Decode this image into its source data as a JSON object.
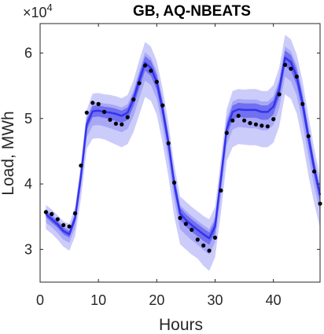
{
  "chart_data": {
    "type": "line",
    "title": "GB, AQ-NBEATS",
    "xlabel": "Hours",
    "ylabel": "Load, MWh",
    "y_multiplier_label": "×10",
    "y_multiplier_exponent": "4",
    "xlim": [
      0,
      48
    ],
    "ylim": [
      25000,
      64500
    ],
    "xticks": [
      0,
      10,
      20,
      30,
      40
    ],
    "xtick_labels": [
      "0",
      "10",
      "20",
      "30",
      "40"
    ],
    "yticks": [
      30000,
      40000,
      50000,
      60000
    ],
    "ytick_labels": [
      "3",
      "4",
      "5",
      "6"
    ],
    "grid": false,
    "legend": "none",
    "x": [
      1,
      2,
      3,
      4,
      5,
      6,
      7,
      8,
      9,
      10,
      11,
      12,
      13,
      14,
      15,
      16,
      17,
      18,
      19,
      20,
      21,
      22,
      23,
      24,
      25,
      26,
      27,
      28,
      29,
      30,
      31,
      32,
      33,
      34,
      35,
      36,
      37,
      38,
      39,
      40,
      41,
      42,
      43,
      44,
      45,
      46,
      47,
      48
    ],
    "series": [
      {
        "kind": "observed-points",
        "color": "#000000",
        "values": [
          35700,
          35400,
          34600,
          33700,
          33500,
          35500,
          42800,
          50900,
          52400,
          52200,
          51000,
          49800,
          49200,
          49100,
          50200,
          52900,
          55400,
          58100,
          57300,
          55600,
          52000,
          46200,
          40200,
          34800,
          33900,
          33000,
          31500,
          30600,
          29800,
          31800,
          39000,
          47800,
          49700,
          50400,
          49700,
          49300,
          49100,
          48900,
          48800,
          49900,
          53700,
          58200,
          57600,
          56400,
          52200,
          47300,
          41900,
          37000
        ]
      },
      {
        "kind": "forecast-median",
        "color": "#3333ee",
        "values": [
          35400,
          34600,
          33800,
          32800,
          32300,
          34800,
          41200,
          49100,
          51100,
          51200,
          51000,
          50900,
          50700,
          50400,
          50900,
          52900,
          55800,
          58500,
          57700,
          55600,
          51400,
          46300,
          40000,
          35500,
          34500,
          33700,
          33000,
          32300,
          31700,
          33500,
          40800,
          48400,
          51000,
          51400,
          51300,
          51300,
          51300,
          51000,
          51000,
          51800,
          54400,
          59300,
          58600,
          56400,
          52300,
          47200,
          42400,
          38300
        ]
      },
      {
        "kind": "quantile-band-outer",
        "color": "#ccccfb",
        "lower": [
          33100,
          32400,
          31500,
          30400,
          29800,
          32000,
          37700,
          45400,
          46900,
          47000,
          46800,
          46400,
          46000,
          45600,
          46100,
          47900,
          50600,
          53300,
          52700,
          50600,
          46200,
          41100,
          35000,
          30800,
          30000,
          29200,
          28600,
          27500,
          26700,
          28800,
          35500,
          43500,
          45600,
          46100,
          46000,
          45900,
          45900,
          45600,
          45600,
          46300,
          48800,
          53700,
          53000,
          50800,
          46500,
          41300,
          37000,
          33300
        ],
        "upper": [
          36800,
          36100,
          35200,
          34300,
          33900,
          36500,
          43100,
          51300,
          53800,
          53900,
          53700,
          53600,
          53400,
          53100,
          53600,
          55800,
          58900,
          61700,
          61000,
          58800,
          54600,
          49300,
          42900,
          38100,
          37300,
          36500,
          35800,
          35100,
          34600,
          36500,
          43800,
          51400,
          54200,
          54500,
          54400,
          54500,
          54500,
          54200,
          54200,
          55100,
          57800,
          62800,
          62100,
          59800,
          55700,
          50400,
          45400,
          41000
        ]
      },
      {
        "kind": "quantile-band-middle",
        "color": "#a8a8f7",
        "lower": [
          34100,
          33400,
          32500,
          31500,
          31000,
          33300,
          39400,
          47100,
          48900,
          49000,
          48800,
          48500,
          48200,
          47900,
          48400,
          50300,
          53100,
          55800,
          55100,
          53000,
          48700,
          43600,
          37500,
          33100,
          32200,
          31400,
          30700,
          29900,
          29200,
          31100,
          38000,
          45900,
          48300,
          48700,
          48600,
          48500,
          48500,
          48200,
          48200,
          49000,
          51600,
          56400,
          55700,
          53500,
          49300,
          44200,
          39600,
          35700
        ],
        "upper": [
          36200,
          35400,
          34500,
          33600,
          33100,
          35700,
          42200,
          50200,
          52400,
          52500,
          52300,
          52200,
          52000,
          51700,
          52200,
          54300,
          57300,
          60100,
          59300,
          57200,
          53000,
          47800,
          41500,
          36800,
          35900,
          35100,
          34400,
          33700,
          33100,
          35000,
          42300,
          49900,
          52600,
          53000,
          52900,
          52900,
          52900,
          52600,
          52600,
          53400,
          56100,
          61000,
          60300,
          58100,
          54000,
          48800,
          43900,
          39700
        ]
      },
      {
        "kind": "quantile-band-inner",
        "color": "#7070f0",
        "lower": [
          34900,
          34100,
          33300,
          32300,
          31800,
          34200,
          40500,
          48300,
          50200,
          50300,
          50100,
          49900,
          49600,
          49300,
          49800,
          51800,
          54600,
          57300,
          56500,
          54400,
          50200,
          45100,
          38900,
          34500,
          33500,
          32700,
          32000,
          31300,
          30700,
          32500,
          39600,
          47300,
          49800,
          50200,
          50100,
          50100,
          50100,
          49800,
          49800,
          50600,
          53200,
          58000,
          57300,
          55100,
          51000,
          45900,
          41200,
          37200
        ],
        "upper": [
          35900,
          35100,
          34300,
          33300,
          32800,
          35400,
          41900,
          49900,
          51900,
          52000,
          51800,
          51700,
          51500,
          51200,
          51700,
          53800,
          56800,
          59500,
          58800,
          56700,
          52500,
          47300,
          41000,
          36400,
          35400,
          34600,
          33900,
          33200,
          32600,
          34400,
          41700,
          49300,
          52000,
          52400,
          52300,
          52300,
          52300,
          52000,
          52000,
          52800,
          55500,
          60400,
          59700,
          57500,
          53400,
          48200,
          43300,
          39100
        ]
      }
    ]
  }
}
